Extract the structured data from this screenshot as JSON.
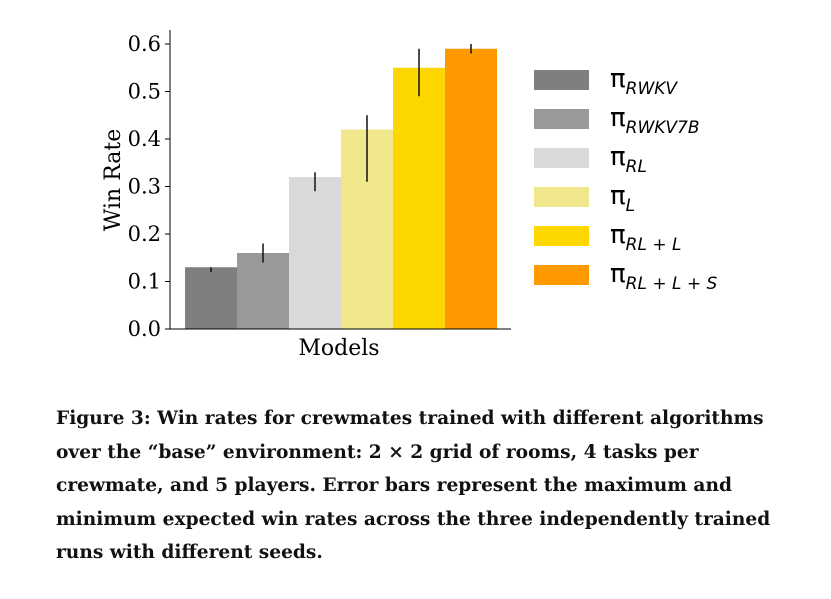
{
  "chart_data": {
    "type": "bar",
    "xlabel": "Models",
    "ylabel": "Win Rate",
    "ylim": [
      0,
      0.62
    ],
    "yticks": [
      "0.0",
      "0.1",
      "0.2",
      "0.3",
      "0.4",
      "0.5",
      "0.6"
    ],
    "legend_position": "right",
    "series": [
      {
        "symbol": "π",
        "subscript": "RWKV",
        "value": 0.13,
        "err_low": 0.12,
        "err_high": 0.13,
        "color": "#7f7f7f"
      },
      {
        "symbol": "π",
        "subscript": "RWKV7B",
        "value": 0.16,
        "err_low": 0.14,
        "err_high": 0.18,
        "color": "#999999"
      },
      {
        "symbol": "π",
        "subscript": "RL",
        "value": 0.32,
        "err_low": 0.29,
        "err_high": 0.33,
        "color": "#d9d9d9"
      },
      {
        "symbol": "π",
        "subscript": "L",
        "value": 0.42,
        "err_low": 0.31,
        "err_high": 0.45,
        "color": "#f0e68c"
      },
      {
        "symbol": "π",
        "subscript": "RL + L",
        "value": 0.55,
        "err_low": 0.49,
        "err_high": 0.59,
        "color": "#ffd700"
      },
      {
        "symbol": "π",
        "subscript": "RL + L + S",
        "value": 0.59,
        "err_low": 0.58,
        "err_high": 0.6,
        "color": "#ff9900"
      }
    ]
  },
  "caption": {
    "text": "Figure 3: Win rates for crewmates trained with different algorithms over the “base” environment: 2 × 2 grid of rooms, 4 tasks per crewmate, and 5 players. Error bars represent the maximum and minimum expected win rates across the three independently trained runs with different seeds."
  }
}
